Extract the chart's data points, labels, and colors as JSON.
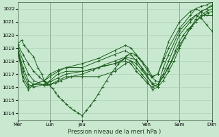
{
  "bg_color": "#c8e8d0",
  "plot_bg_color": "#c8e8d0",
  "grid_color": "#a8c8b0",
  "line_color": "#1a5c1a",
  "xlabel_text": "Pression niveau de la mer( hPa )",
  "xlim": [
    0,
    144
  ],
  "ylim": [
    1013.5,
    1022.5
  ],
  "yticks": [
    1014,
    1015,
    1016,
    1017,
    1018,
    1019,
    1020,
    1021,
    1022
  ],
  "day_labels": [
    "Mer",
    "Lun",
    "Jeu",
    "Ven",
    "Sam",
    "Dim"
  ],
  "day_tick_positions": [
    0,
    24,
    48,
    96,
    120,
    144
  ],
  "series": [
    [
      0,
      1019.3,
      3,
      1019.6,
      5,
      1019.2,
      8,
      1018.8,
      12,
      1018.3,
      15,
      1017.5,
      18,
      1017.0,
      20,
      1016.4,
      22,
      1016.2,
      24,
      1016.1,
      26,
      1015.9,
      28,
      1015.6,
      30,
      1015.3,
      33,
      1015.0,
      36,
      1014.7,
      39,
      1014.4,
      42,
      1014.2,
      45,
      1014.0,
      48,
      1013.8,
      51,
      1014.2,
      54,
      1014.6,
      57,
      1015.0,
      60,
      1015.5,
      63,
      1016.0,
      66,
      1016.5,
      69,
      1017.0,
      72,
      1017.4,
      75,
      1017.8,
      78,
      1018.1,
      81,
      1018.4,
      84,
      1018.6,
      87,
      1018.5,
      90,
      1018.2,
      93,
      1017.8,
      96,
      1017.3,
      99,
      1016.8,
      102,
      1016.5,
      105,
      1016.4,
      108,
      1016.8,
      111,
      1017.4,
      114,
      1018.0,
      117,
      1018.8,
      120,
      1019.5,
      123,
      1020.0,
      126,
      1020.4,
      129,
      1020.7,
      132,
      1021.0,
      135,
      1021.3,
      138,
      1021.5,
      141,
      1021.7,
      144,
      1021.8
    ],
    [
      0,
      1019.3,
      4,
      1018.5,
      8,
      1017.8,
      12,
      1017.2,
      16,
      1016.8,
      20,
      1016.4,
      24,
      1016.2,
      28,
      1016.3,
      32,
      1016.5,
      40,
      1016.8,
      48,
      1017.0,
      56,
      1017.3,
      64,
      1017.7,
      72,
      1018.0,
      80,
      1018.3,
      88,
      1018.1,
      92,
      1017.5,
      96,
      1016.8,
      100,
      1016.2,
      104,
      1016.0,
      108,
      1016.5,
      112,
      1017.2,
      116,
      1018.0,
      120,
      1019.0,
      124,
      1019.8,
      128,
      1020.5,
      132,
      1021.0,
      136,
      1021.5,
      140,
      1021.8,
      144,
      1022.0
    ],
    [
      0,
      1019.2,
      4,
      1018.0,
      8,
      1017.0,
      12,
      1016.5,
      20,
      1016.1,
      24,
      1016.2,
      30,
      1016.5,
      36,
      1016.8,
      48,
      1016.8,
      60,
      1016.8,
      72,
      1017.2,
      80,
      1017.8,
      84,
      1018.0,
      88,
      1017.8,
      92,
      1017.3,
      96,
      1016.8,
      100,
      1016.3,
      104,
      1016.2,
      108,
      1016.8,
      112,
      1017.5,
      120,
      1019.2,
      128,
      1020.5,
      132,
      1021.2,
      136,
      1021.8,
      140,
      1022.0,
      144,
      1022.2
    ],
    [
      0,
      1019.0,
      4,
      1017.5,
      8,
      1016.5,
      12,
      1016.2,
      20,
      1016.2,
      24,
      1016.4,
      30,
      1016.7,
      36,
      1017.0,
      48,
      1017.2,
      60,
      1017.5,
      72,
      1017.8,
      80,
      1018.0,
      84,
      1017.8,
      88,
      1017.2,
      92,
      1016.8,
      96,
      1016.3,
      100,
      1016.0,
      104,
      1016.2,
      108,
      1017.0,
      112,
      1018.0,
      120,
      1020.0,
      128,
      1021.0,
      132,
      1021.5,
      136,
      1021.8,
      140,
      1022.0,
      144,
      1022.3
    ],
    [
      0,
      1019.0,
      4,
      1017.2,
      8,
      1016.2,
      12,
      1016.0,
      20,
      1016.2,
      24,
      1016.5,
      30,
      1017.0,
      36,
      1017.2,
      48,
      1017.2,
      60,
      1017.5,
      72,
      1017.8,
      80,
      1018.2,
      84,
      1018.0,
      88,
      1017.5,
      92,
      1017.0,
      96,
      1016.5,
      100,
      1015.8,
      104,
      1016.0,
      108,
      1017.5,
      112,
      1018.5,
      120,
      1020.3,
      128,
      1021.2,
      132,
      1021.5,
      136,
      1021.3,
      140,
      1020.8,
      144,
      1020.3
    ],
    [
      0,
      1019.0,
      4,
      1016.8,
      8,
      1016.0,
      12,
      1016.2,
      20,
      1016.5,
      24,
      1016.8,
      30,
      1017.2,
      36,
      1017.5,
      48,
      1017.5,
      60,
      1018.0,
      72,
      1018.5,
      80,
      1018.8,
      84,
      1018.5,
      88,
      1018.0,
      92,
      1017.5,
      96,
      1017.0,
      100,
      1016.8,
      104,
      1017.0,
      108,
      1018.0,
      112,
      1019.0,
      120,
      1020.5,
      128,
      1021.5,
      132,
      1022.0,
      136,
      1022.2,
      140,
      1022.3,
      144,
      1022.5
    ],
    [
      0,
      1019.0,
      4,
      1016.5,
      8,
      1015.8,
      12,
      1016.2,
      20,
      1016.5,
      24,
      1017.0,
      30,
      1017.3,
      36,
      1017.5,
      48,
      1017.8,
      60,
      1018.2,
      72,
      1018.8,
      80,
      1019.2,
      84,
      1019.0,
      88,
      1018.5,
      92,
      1018.0,
      96,
      1017.5,
      100,
      1016.8,
      104,
      1017.0,
      108,
      1018.2,
      112,
      1019.5,
      120,
      1021.0,
      128,
      1021.8,
      132,
      1022.0,
      136,
      1021.8,
      140,
      1021.5,
      144,
      1021.5
    ]
  ]
}
